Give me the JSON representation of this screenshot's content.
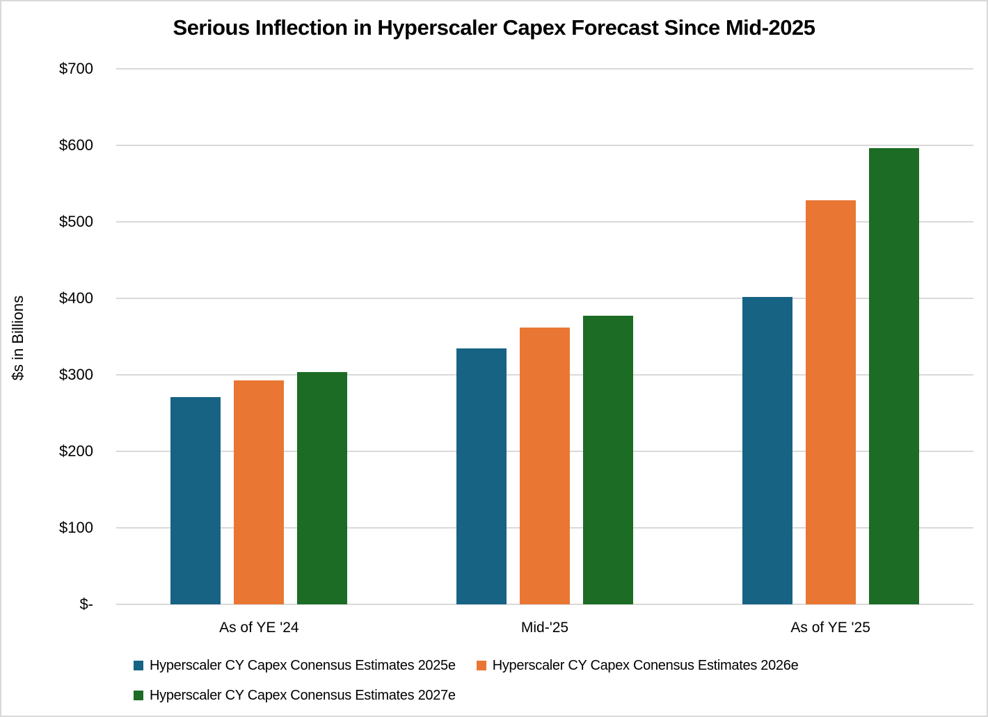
{
  "page": {
    "background": "#ffffff",
    "border_color": "#d9d9d9"
  },
  "chart_data": {
    "type": "bar",
    "title": "Serious Inflection in Hyperscaler Capex Forecast Since Mid-2025",
    "xlabel": "",
    "ylabel": "$s in Billions",
    "categories": [
      "As of YE '24",
      "Mid-'25",
      "As of YE '25"
    ],
    "series": [
      {
        "name": "Hyperscaler CY Capex Conensus Estimates 2025e",
        "color": "#176384",
        "values": [
          271,
          335,
          402
        ]
      },
      {
        "name": "Hyperscaler CY Capex Conensus Estimates 2026e",
        "color": "#E97733",
        "values": [
          293,
          362,
          528
        ]
      },
      {
        "name": "Hyperscaler CY Capex Conensus Estimates 2027e",
        "color": "#1C6C25",
        "values": [
          304,
          377,
          596
        ]
      }
    ],
    "ylim": [
      0,
      700
    ],
    "yticks": [
      {
        "label": "$-",
        "value": 0
      },
      {
        "label": "$100",
        "value": 100
      },
      {
        "label": "$200",
        "value": 200
      },
      {
        "label": "$300",
        "value": 300
      },
      {
        "label": "$400",
        "value": 400
      },
      {
        "label": "$500",
        "value": 500
      },
      {
        "label": "$600",
        "value": 600
      },
      {
        "label": "$700",
        "value": 700
      }
    ],
    "grid": "horizontal",
    "gridline_color": "#d9d9d9",
    "legend_position": "bottom-left",
    "legend_rows": [
      [
        0,
        1
      ],
      [
        2
      ]
    ]
  }
}
